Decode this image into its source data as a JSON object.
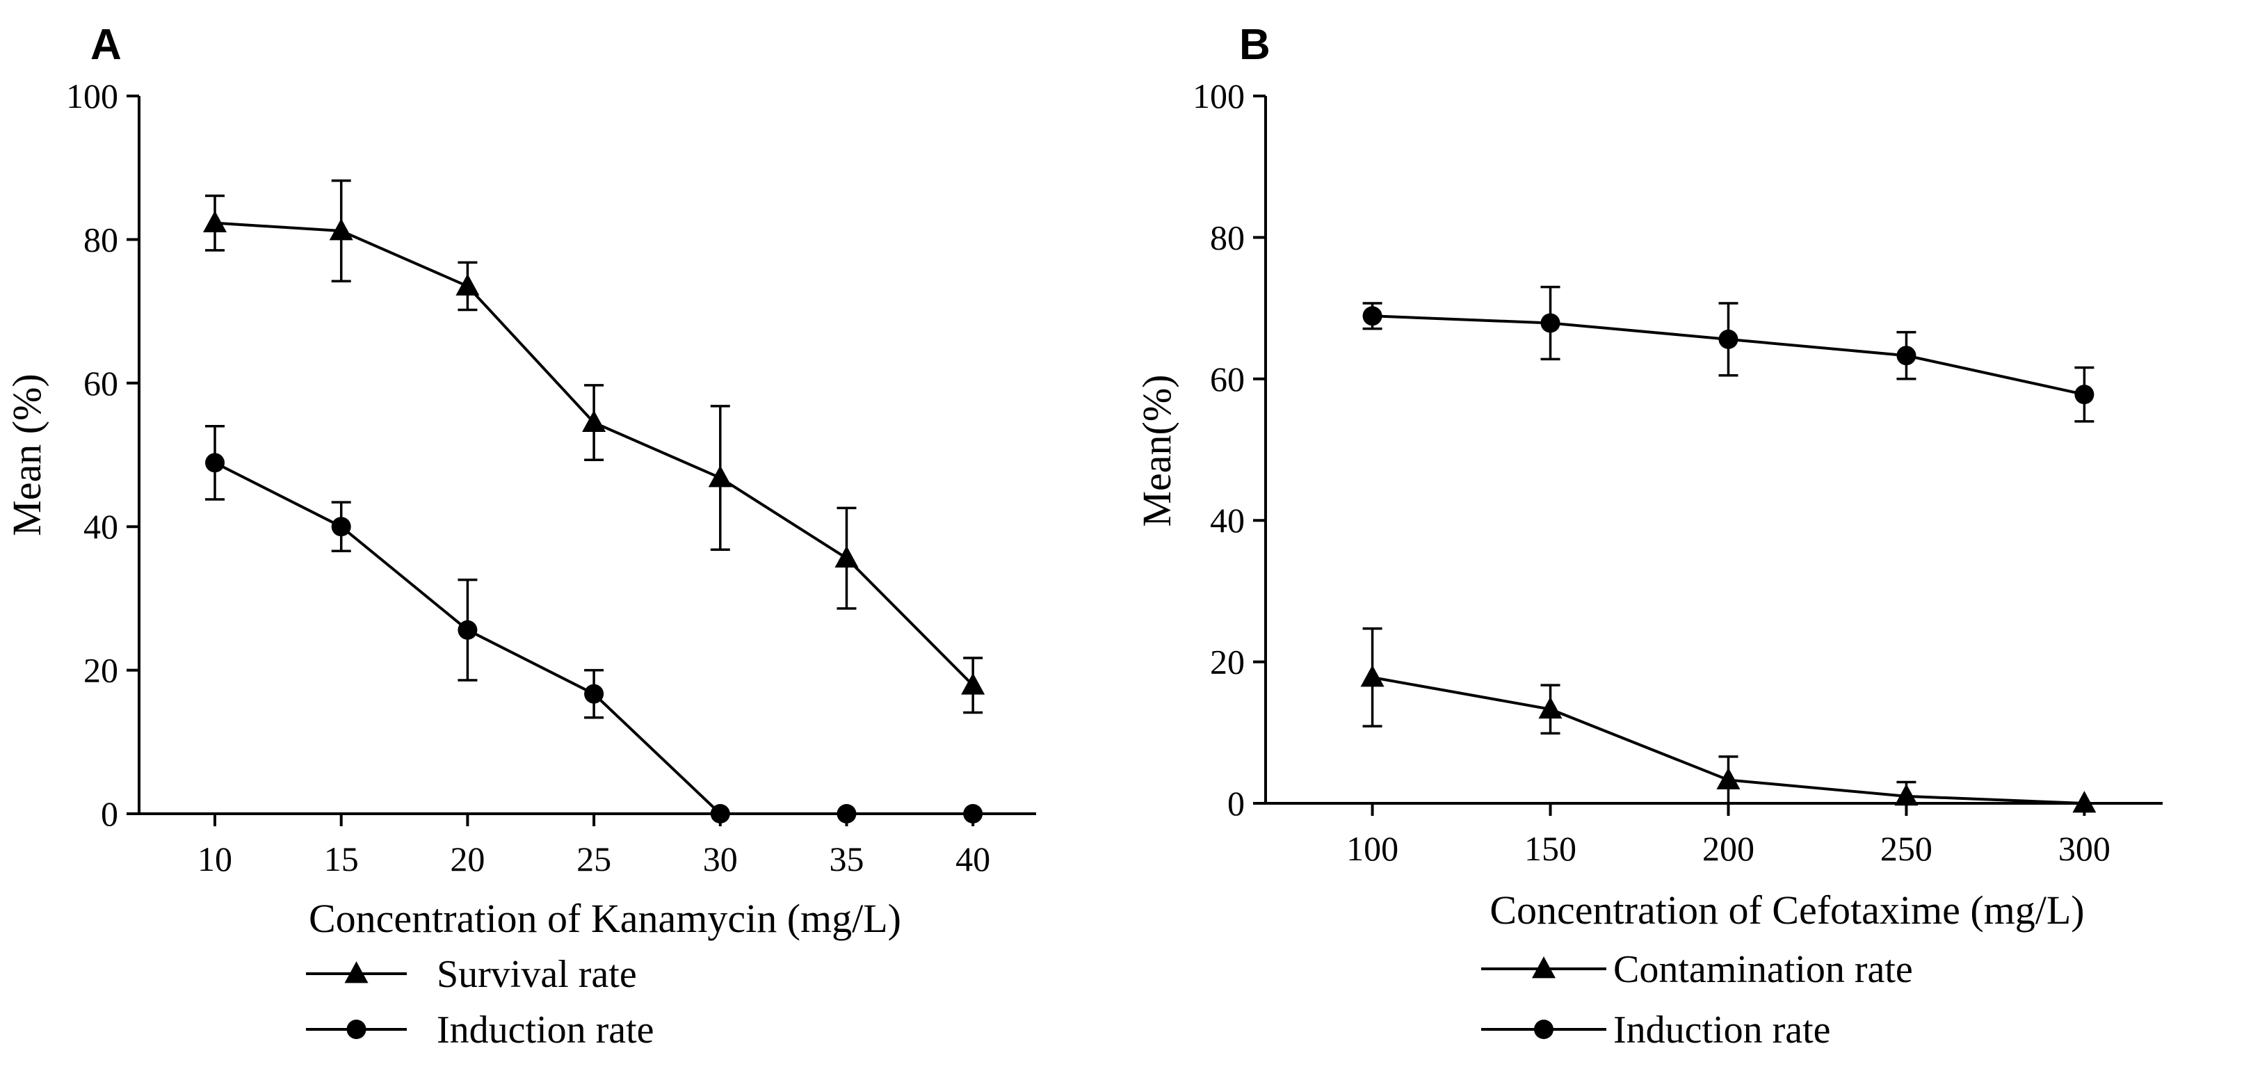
{
  "chart_data": [
    {
      "panel_label": "A",
      "type": "line",
      "title": "",
      "xlabel": "Concentration of Kanamycin (mg/L)",
      "ylabel": "Mean (%)",
      "x": [
        10,
        15,
        20,
        25,
        30,
        35,
        40
      ],
      "x_ticks": [
        "10",
        "15",
        "20",
        "25",
        "30",
        "35",
        "40"
      ],
      "xlim": [
        7,
        42.5
      ],
      "ylim": [
        0,
        100
      ],
      "y_ticks": [
        "0",
        "20",
        "40",
        "60",
        "80",
        "100"
      ],
      "grid": false,
      "legend_position": "bottom",
      "series": [
        {
          "name": "Survival rate",
          "marker": "triangle",
          "values": [
            82.3,
            81.2,
            73.5,
            54.5,
            46.8,
            35.6,
            17.9
          ],
          "errors": [
            3.8,
            7.0,
            3.3,
            5.2,
            10.0,
            7.0,
            3.8
          ]
        },
        {
          "name": "Induction rate",
          "marker": "circle",
          "values": [
            48.9,
            40.0,
            25.6,
            16.7,
            0,
            0,
            0
          ],
          "errors": [
            5.1,
            3.4,
            7.0,
            3.3,
            0,
            0,
            0
          ]
        }
      ]
    },
    {
      "panel_label": "B",
      "type": "line",
      "title": "",
      "xlabel": "Concentration of Cefotaxime (mg/L)",
      "ylabel": "Mean(%)",
      "x": [
        100,
        150,
        200,
        250,
        300
      ],
      "x_ticks": [
        "100",
        "150",
        "200",
        "250",
        "300"
      ],
      "xlim": [
        70,
        322
      ],
      "ylim": [
        0,
        100
      ],
      "y_ticks": [
        "0",
        "20",
        "40",
        "60",
        "80",
        "100"
      ],
      "grid": false,
      "legend_position": "bottom",
      "series": [
        {
          "name": "Contamination rate",
          "marker": "triangle",
          "values": [
            17.8,
            13.3,
            3.3,
            1.0,
            0
          ],
          "errors": [
            6.9,
            3.4,
            3.3,
            2.0,
            0
          ]
        },
        {
          "name": "Induction rate",
          "marker": "circle",
          "values": [
            68.9,
            67.9,
            65.6,
            63.3,
            57.8
          ],
          "errors": [
            1.8,
            5.1,
            5.1,
            3.3,
            3.8
          ]
        }
      ]
    }
  ]
}
